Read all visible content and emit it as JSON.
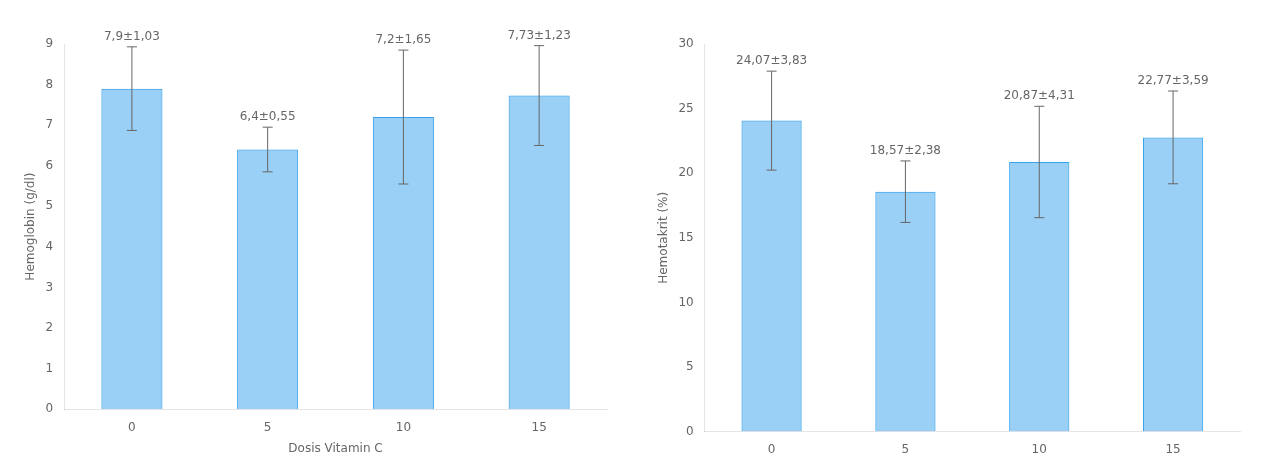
{
  "chart_data": [
    {
      "type": "bar",
      "categories": [
        "0",
        "5",
        "10",
        "15"
      ],
      "values": [
        7.9,
        6.4,
        7.2,
        7.73
      ],
      "errors": [
        1.03,
        0.55,
        1.65,
        1.23
      ],
      "data_labels": true,
      "value_labels": [
        "7,9±1,03",
        "6,4±0,55",
        "7,2±1,65",
        "7,73±1,23"
      ],
      "ylabel": "Hemoglobin (g/dl)",
      "xlabel": "Dosis Vitamin C",
      "ylim": [
        0,
        9
      ],
      "yticks": [
        0,
        1,
        2,
        3,
        4,
        5,
        6,
        7,
        8,
        9
      ],
      "grid": false
    },
    {
      "type": "bar",
      "categories": [
        "0",
        "5",
        "10",
        "15"
      ],
      "values": [
        24.07,
        18.57,
        20.87,
        22.77
      ],
      "errors": [
        3.83,
        2.38,
        4.31,
        3.59
      ],
      "data_labels": true,
      "value_labels": [
        "24,07±3,83",
        "18,57±2,38",
        "20,87±4,31",
        "22,77±3,59"
      ],
      "ylabel": "Hemotakrit (%)",
      "ylim": [
        0,
        30
      ],
      "yticks": [
        0,
        5,
        10,
        15,
        20,
        25,
        30
      ],
      "grid": false
    }
  ]
}
